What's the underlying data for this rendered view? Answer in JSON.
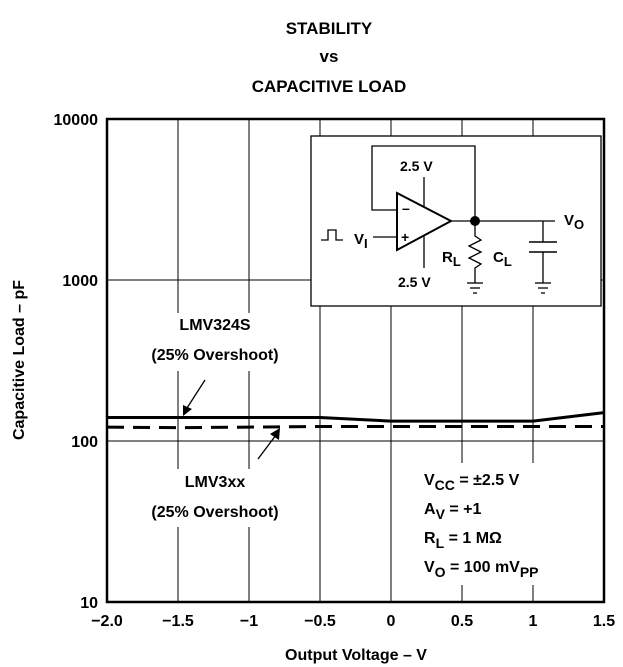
{
  "chart_data": {
    "type": "line",
    "title_lines": [
      "STABILITY",
      "vs",
      "CAPACITIVE LOAD"
    ],
    "xlabel": "Output Voltage – V",
    "ylabel": "Capacitive Load – pF",
    "xlim": [
      -2.0,
      1.5
    ],
    "ylim": [
      10,
      10000
    ],
    "yscale": "log",
    "grid": true,
    "x_ticks": [
      -2.0,
      -1.5,
      -1,
      -0.5,
      0,
      0.5,
      1,
      1.5
    ],
    "x_tick_labels": [
      "−2.0",
      "−1.5",
      "−1",
      "−0.5",
      "0",
      "0.5",
      "1",
      "1.5"
    ],
    "y_ticks": [
      10,
      100,
      1000,
      10000
    ],
    "y_tick_labels": [
      "10",
      "100",
      "1000",
      "10000"
    ],
    "series": [
      {
        "style": "solid",
        "x": [
          -2.0,
          -1.5,
          -1.0,
          -0.5,
          0,
          0.5,
          1.0,
          1.5
        ],
        "y": [
          140,
          140,
          140,
          140,
          133,
          133,
          133,
          150
        ]
      },
      {
        "style": "dashed",
        "x": [
          -2.0,
          -1.5,
          -1.0,
          -0.5,
          0,
          0.5,
          1.0,
          1.5
        ],
        "y": [
          122,
          121,
          122,
          123,
          123,
          123,
          123,
          123
        ]
      }
    ],
    "annotations": {
      "lmv324s": [
        "LMV324S",
        "(25% Overshoot)"
      ],
      "lmv3xx": [
        "LMV3xx",
        "(25% Overshoot)"
      ]
    },
    "conditions": {
      "vcc": {
        "main": "V",
        "sub": "CC",
        "rest": " = ±2.5 V"
      },
      "av": {
        "main": "A",
        "sub": "V",
        "rest": " = +1"
      },
      "rl": {
        "main": "R",
        "sub": "L",
        "rest": " = 1 MΩ"
      },
      "vo": {
        "main": "V",
        "sub": "O",
        "rest": " = 100 mV",
        "sub2": "PP"
      }
    },
    "inset": {
      "supply_top": "2.5 V",
      "supply_bottom": "2.5 V",
      "minus": "–",
      "plus": "+",
      "vi": {
        "main": "V",
        "sub": "I"
      },
      "rl": {
        "main": "R",
        "sub": "L"
      },
      "cl": {
        "main": "C",
        "sub": "L"
      },
      "vo": {
        "main": "V",
        "sub": "O"
      }
    }
  }
}
